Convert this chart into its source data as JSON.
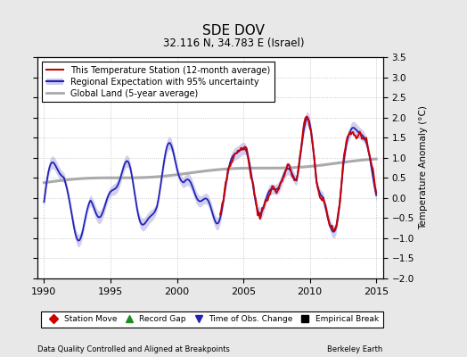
{
  "title": "SDE DOV",
  "subtitle": "32.116 N, 34.783 E (Israel)",
  "xlabel_left": "Data Quality Controlled and Aligned at Breakpoints",
  "xlabel_right": "Berkeley Earth",
  "ylabel": "Temperature Anomaly (°C)",
  "ylim": [
    -2.0,
    3.5
  ],
  "yticks": [
    -2,
    -1.5,
    -1,
    -0.5,
    0,
    0.5,
    1,
    1.5,
    2,
    2.5,
    3,
    3.5
  ],
  "xlim": [
    1989.5,
    2015.5
  ],
  "xticks": [
    1990,
    1995,
    2000,
    2005,
    2010,
    2015
  ],
  "bg_color": "#e8e8e8",
  "plot_bg_color": "#ffffff",
  "regional_color": "#2222bb",
  "regional_fill_color": "#9999dd",
  "station_color": "#cc0000",
  "global_color": "#aaaaaa",
  "legend_labels": [
    "This Temperature Station (12-month average)",
    "Regional Expectation with 95% uncertainty",
    "Global Land (5-year average)"
  ],
  "bottom_legend": [
    {
      "label": "Station Move",
      "color": "#cc0000",
      "marker": "D"
    },
    {
      "label": "Record Gap",
      "color": "#228B22",
      "marker": "^"
    },
    {
      "label": "Time of Obs. Change",
      "color": "#2222bb",
      "marker": "v"
    },
    {
      "label": "Empirical Break",
      "color": "#000000",
      "marker": "s"
    }
  ]
}
